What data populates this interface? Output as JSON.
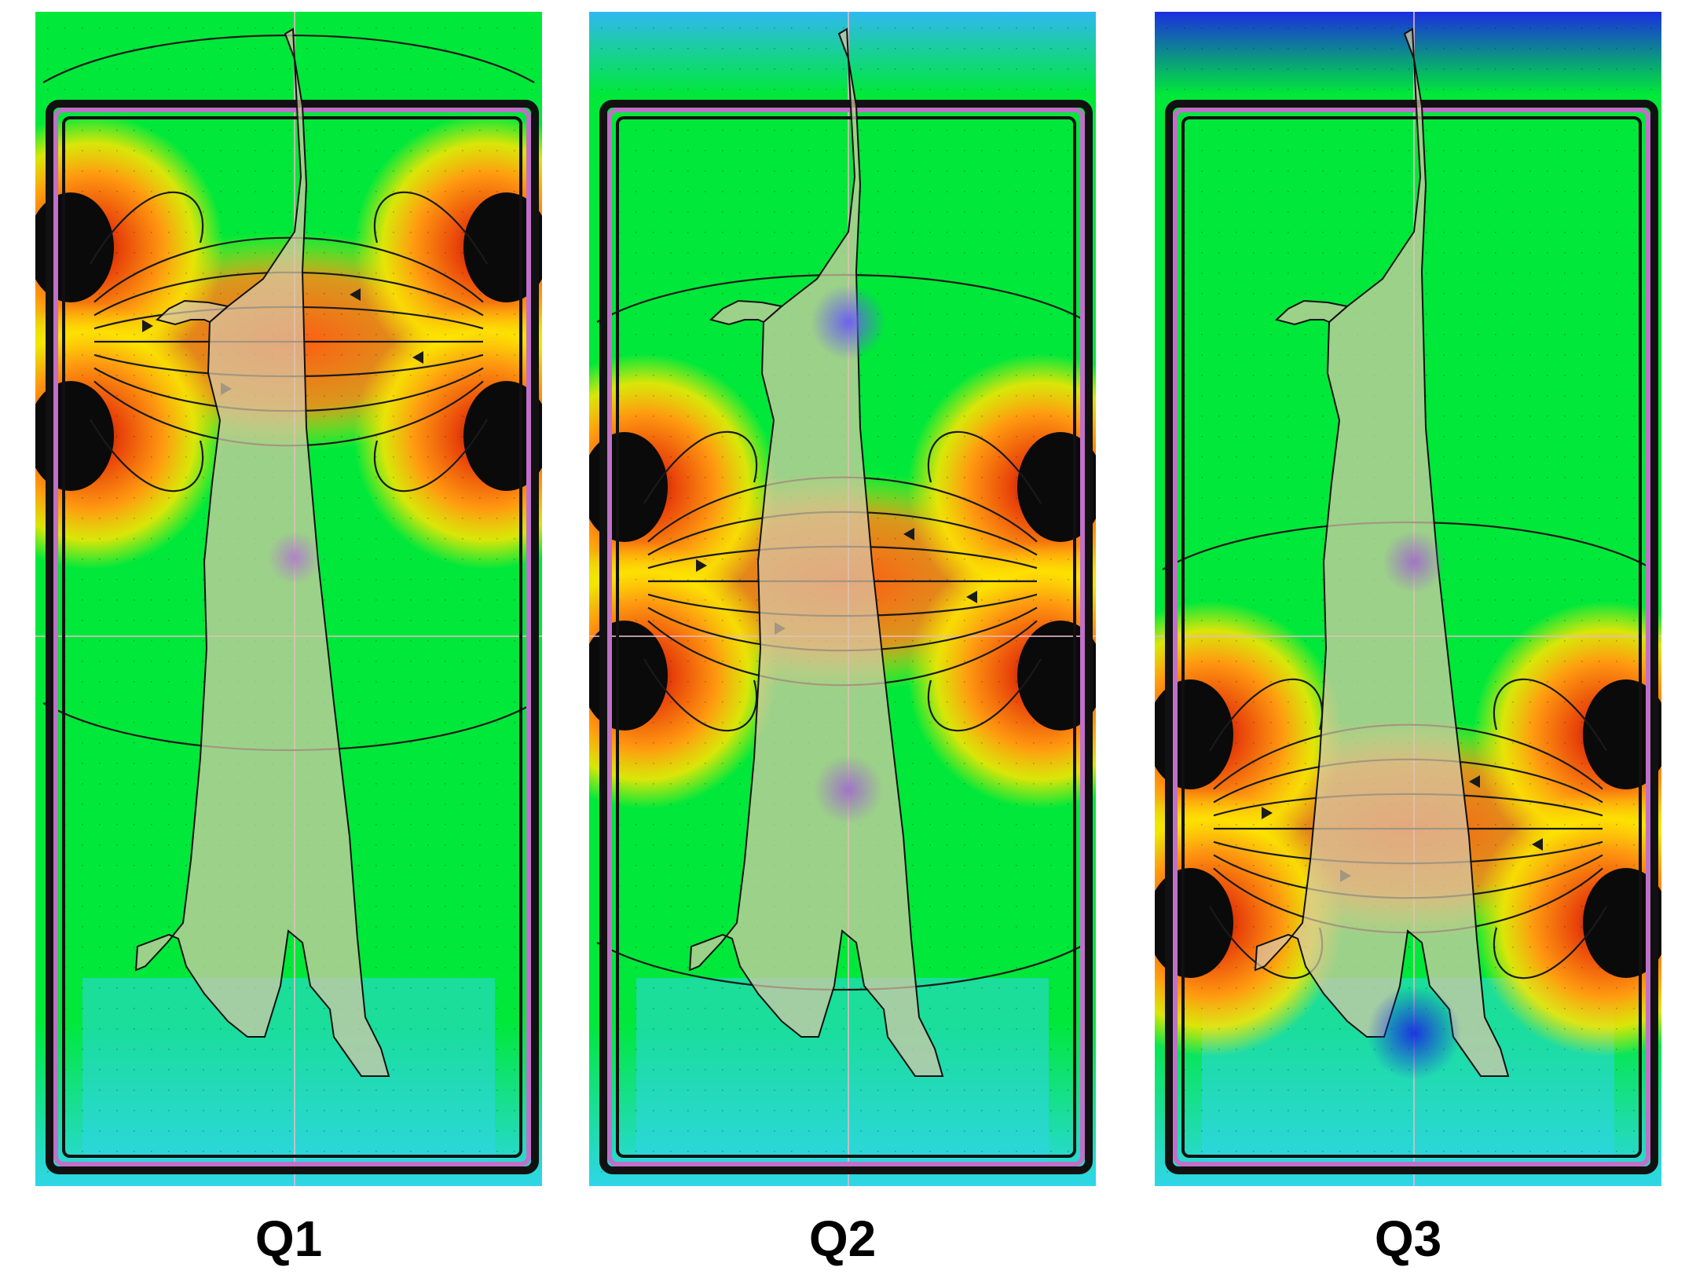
{
  "figure": {
    "panels": [
      {
        "label": "Q1",
        "field_focus": "upper"
      },
      {
        "label": "Q2",
        "field_focus": "middle"
      },
      {
        "label": "Q3",
        "field_focus": "lower"
      }
    ],
    "colors": {
      "high_field": "#e8420a",
      "mid_field": "#ffe600",
      "low_field": "#00e83a",
      "very_low_field": "#2fd6e8",
      "minimum_field": "#1a2ee0",
      "coil_frame": "#c070c8",
      "carcass_fill": "#d8c8a8",
      "field_lines": "#1a1a1a"
    }
  }
}
